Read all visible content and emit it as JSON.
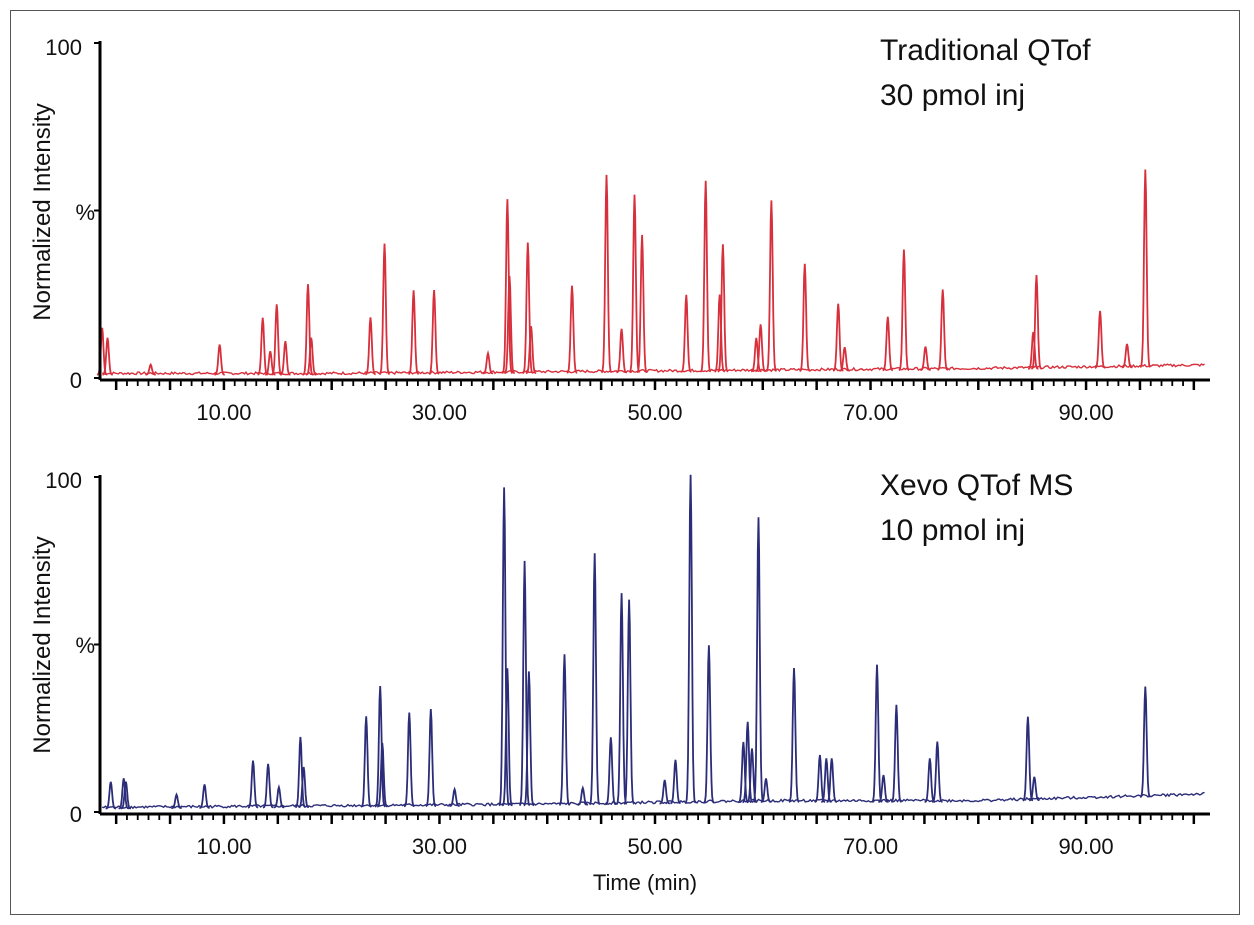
{
  "chart_data": [
    {
      "type": "line",
      "title": "Traditional QTof",
      "subtitle": "30 pmol inj",
      "xlabel": "",
      "ylabel": "Normalized Intensity",
      "ylabel_unit": "%",
      "xlim": [
        -1.5,
        101.5
      ],
      "ylim": [
        0,
        100
      ],
      "x_ticks": [
        "10.00",
        "30.00",
        "50.00",
        "70.00",
        "90.00"
      ],
      "y_ticks": [
        "0",
        "%",
        "100"
      ],
      "color": "#d7303c",
      "grid": false,
      "baseline": [
        [
          -1.5,
          1
        ],
        [
          20,
          1
        ],
        [
          40,
          1.5
        ],
        [
          60,
          2
        ],
        [
          80,
          2.5
        ],
        [
          101,
          3.5
        ]
      ],
      "peaks": [
        [
          -1.3,
          14
        ],
        [
          -0.8,
          11
        ],
        [
          3.2,
          3
        ],
        [
          9.6,
          9
        ],
        [
          13.6,
          17
        ],
        [
          14.3,
          7
        ],
        [
          14.9,
          21
        ],
        [
          15.7,
          10
        ],
        [
          17.8,
          27
        ],
        [
          18.1,
          11
        ],
        [
          23.6,
          17
        ],
        [
          24.9,
          39
        ],
        [
          27.6,
          25
        ],
        [
          29.5,
          25
        ],
        [
          34.5,
          6
        ],
        [
          36.3,
          52
        ],
        [
          36.5,
          29
        ],
        [
          38.2,
          39
        ],
        [
          38.5,
          14
        ],
        [
          42.3,
          26
        ],
        [
          45.5,
          59
        ],
        [
          46.9,
          13
        ],
        [
          48.1,
          53
        ],
        [
          48.8,
          41
        ],
        [
          52.9,
          23
        ],
        [
          54.7,
          57
        ],
        [
          56.0,
          23
        ],
        [
          56.3,
          38
        ],
        [
          59.4,
          10
        ],
        [
          59.8,
          14
        ],
        [
          60.8,
          51
        ],
        [
          63.9,
          32
        ],
        [
          67.0,
          20
        ],
        [
          67.6,
          7
        ],
        [
          71.6,
          16
        ],
        [
          73.1,
          36
        ],
        [
          75.1,
          7
        ],
        [
          76.7,
          24
        ],
        [
          85.1,
          11
        ],
        [
          85.4,
          28
        ],
        [
          91.3,
          17
        ],
        [
          93.8,
          7
        ],
        [
          95.5,
          59
        ]
      ]
    },
    {
      "type": "line",
      "title": "Xevo QTof MS",
      "subtitle": "10 pmol inj",
      "xlabel": "Time (min)",
      "ylabel": "Normalized Intensity",
      "ylabel_unit": "%",
      "xlim": [
        -1.5,
        101.5
      ],
      "ylim": [
        0,
        100
      ],
      "x_ticks": [
        "10.00",
        "30.00",
        "50.00",
        "70.00",
        "90.00"
      ],
      "y_ticks": [
        "0",
        "%",
        "100"
      ],
      "color": "#2c2d78",
      "grid": false,
      "baseline": [
        [
          -1.5,
          1
        ],
        [
          20,
          1.5
        ],
        [
          40,
          2
        ],
        [
          60,
          3
        ],
        [
          80,
          3
        ],
        [
          101,
          5
        ]
      ],
      "peaks": [
        [
          -0.5,
          8
        ],
        [
          0.7,
          9
        ],
        [
          0.9,
          8
        ],
        [
          5.6,
          4
        ],
        [
          8.2,
          7
        ],
        [
          12.7,
          14
        ],
        [
          14.1,
          13
        ],
        [
          15.1,
          6
        ],
        [
          17.1,
          21
        ],
        [
          17.4,
          12
        ],
        [
          23.2,
          27
        ],
        [
          24.5,
          36
        ],
        [
          24.7,
          19
        ],
        [
          27.2,
          28
        ],
        [
          29.2,
          29
        ],
        [
          31.4,
          5
        ],
        [
          36.0,
          95
        ],
        [
          36.3,
          41
        ],
        [
          37.9,
          73
        ],
        [
          38.3,
          40
        ],
        [
          41.6,
          45
        ],
        [
          43.3,
          5
        ],
        [
          44.4,
          75
        ],
        [
          45.9,
          20
        ],
        [
          46.9,
          63
        ],
        [
          47.6,
          61
        ],
        [
          50.9,
          7
        ],
        [
          51.9,
          13
        ],
        [
          53.3,
          98
        ],
        [
          55.0,
          47
        ],
        [
          58.2,
          18
        ],
        [
          58.6,
          24
        ],
        [
          59.0,
          16
        ],
        [
          59.6,
          85
        ],
        [
          60.3,
          7
        ],
        [
          62.9,
          40
        ],
        [
          65.3,
          14
        ],
        [
          65.9,
          13
        ],
        [
          66.4,
          13
        ],
        [
          70.6,
          41
        ],
        [
          71.2,
          8
        ],
        [
          72.4,
          29
        ],
        [
          75.5,
          13
        ],
        [
          76.2,
          18
        ],
        [
          84.6,
          25
        ],
        [
          85.2,
          7
        ],
        [
          95.5,
          33
        ]
      ]
    }
  ]
}
